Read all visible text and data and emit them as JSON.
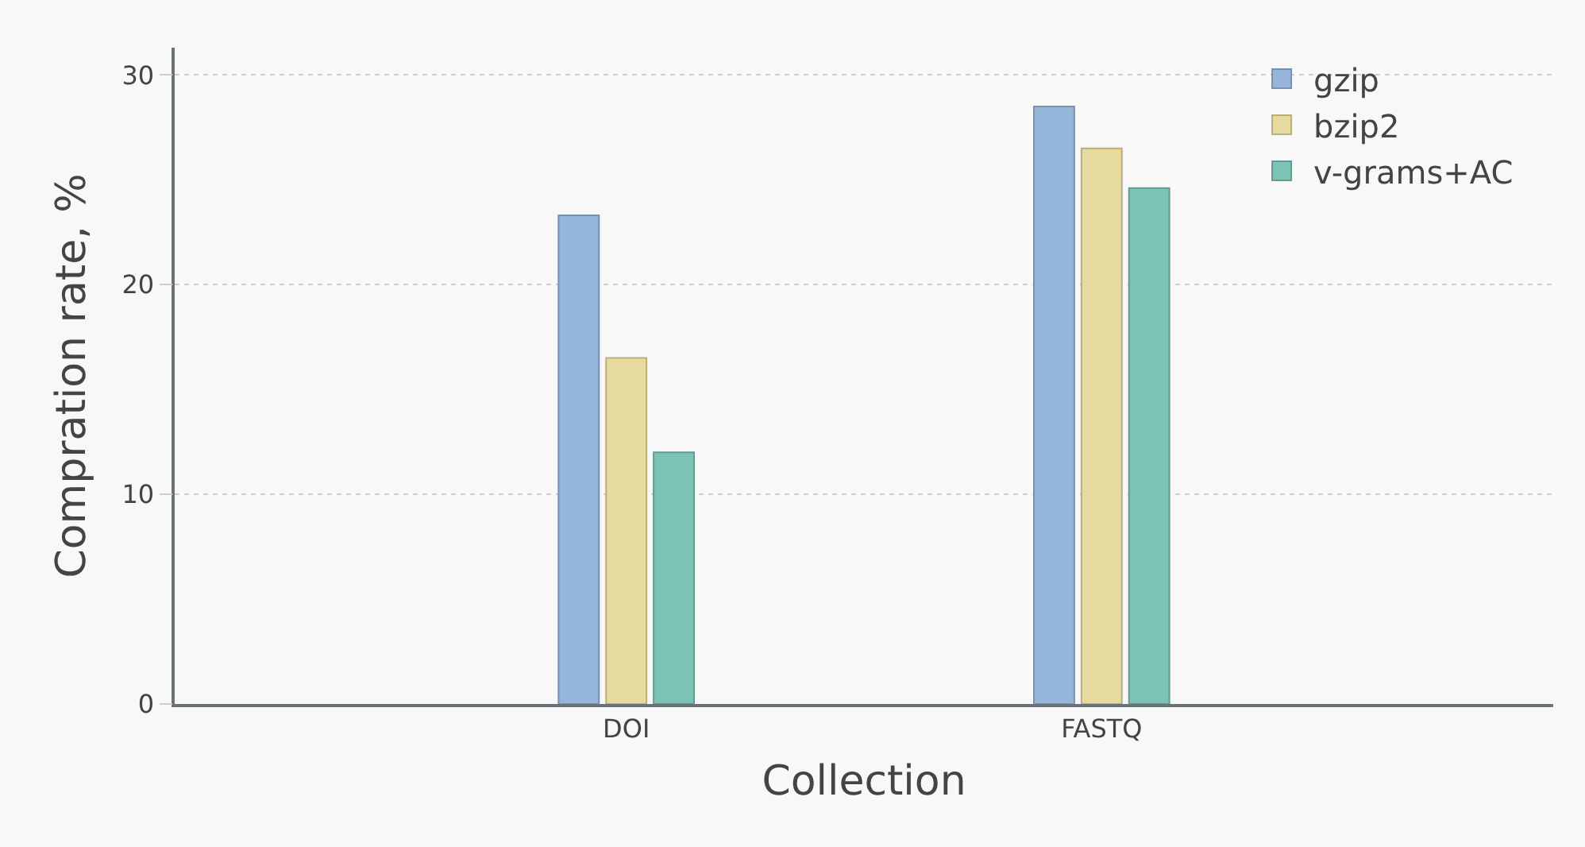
{
  "chart_data": {
    "type": "bar",
    "xlabel": "Collection",
    "ylabel": "Compration rate, %",
    "categories": [
      "DOI",
      "FASTQ"
    ],
    "series": [
      {
        "name": "gzip",
        "color": "#95b6da",
        "values": [
          23.3,
          28.5
        ]
      },
      {
        "name": "bzip2",
        "color": "#e6da9e",
        "values": [
          16.5,
          26.5
        ]
      },
      {
        "name": "v-grams+AC",
        "color": "#7cc2b5",
        "values": [
          12.0,
          24.6
        ]
      }
    ],
    "ylim": [
      0,
      31.3
    ],
    "yticks": [
      0,
      10,
      20,
      30
    ],
    "grid": "y",
    "legend": "top right"
  }
}
